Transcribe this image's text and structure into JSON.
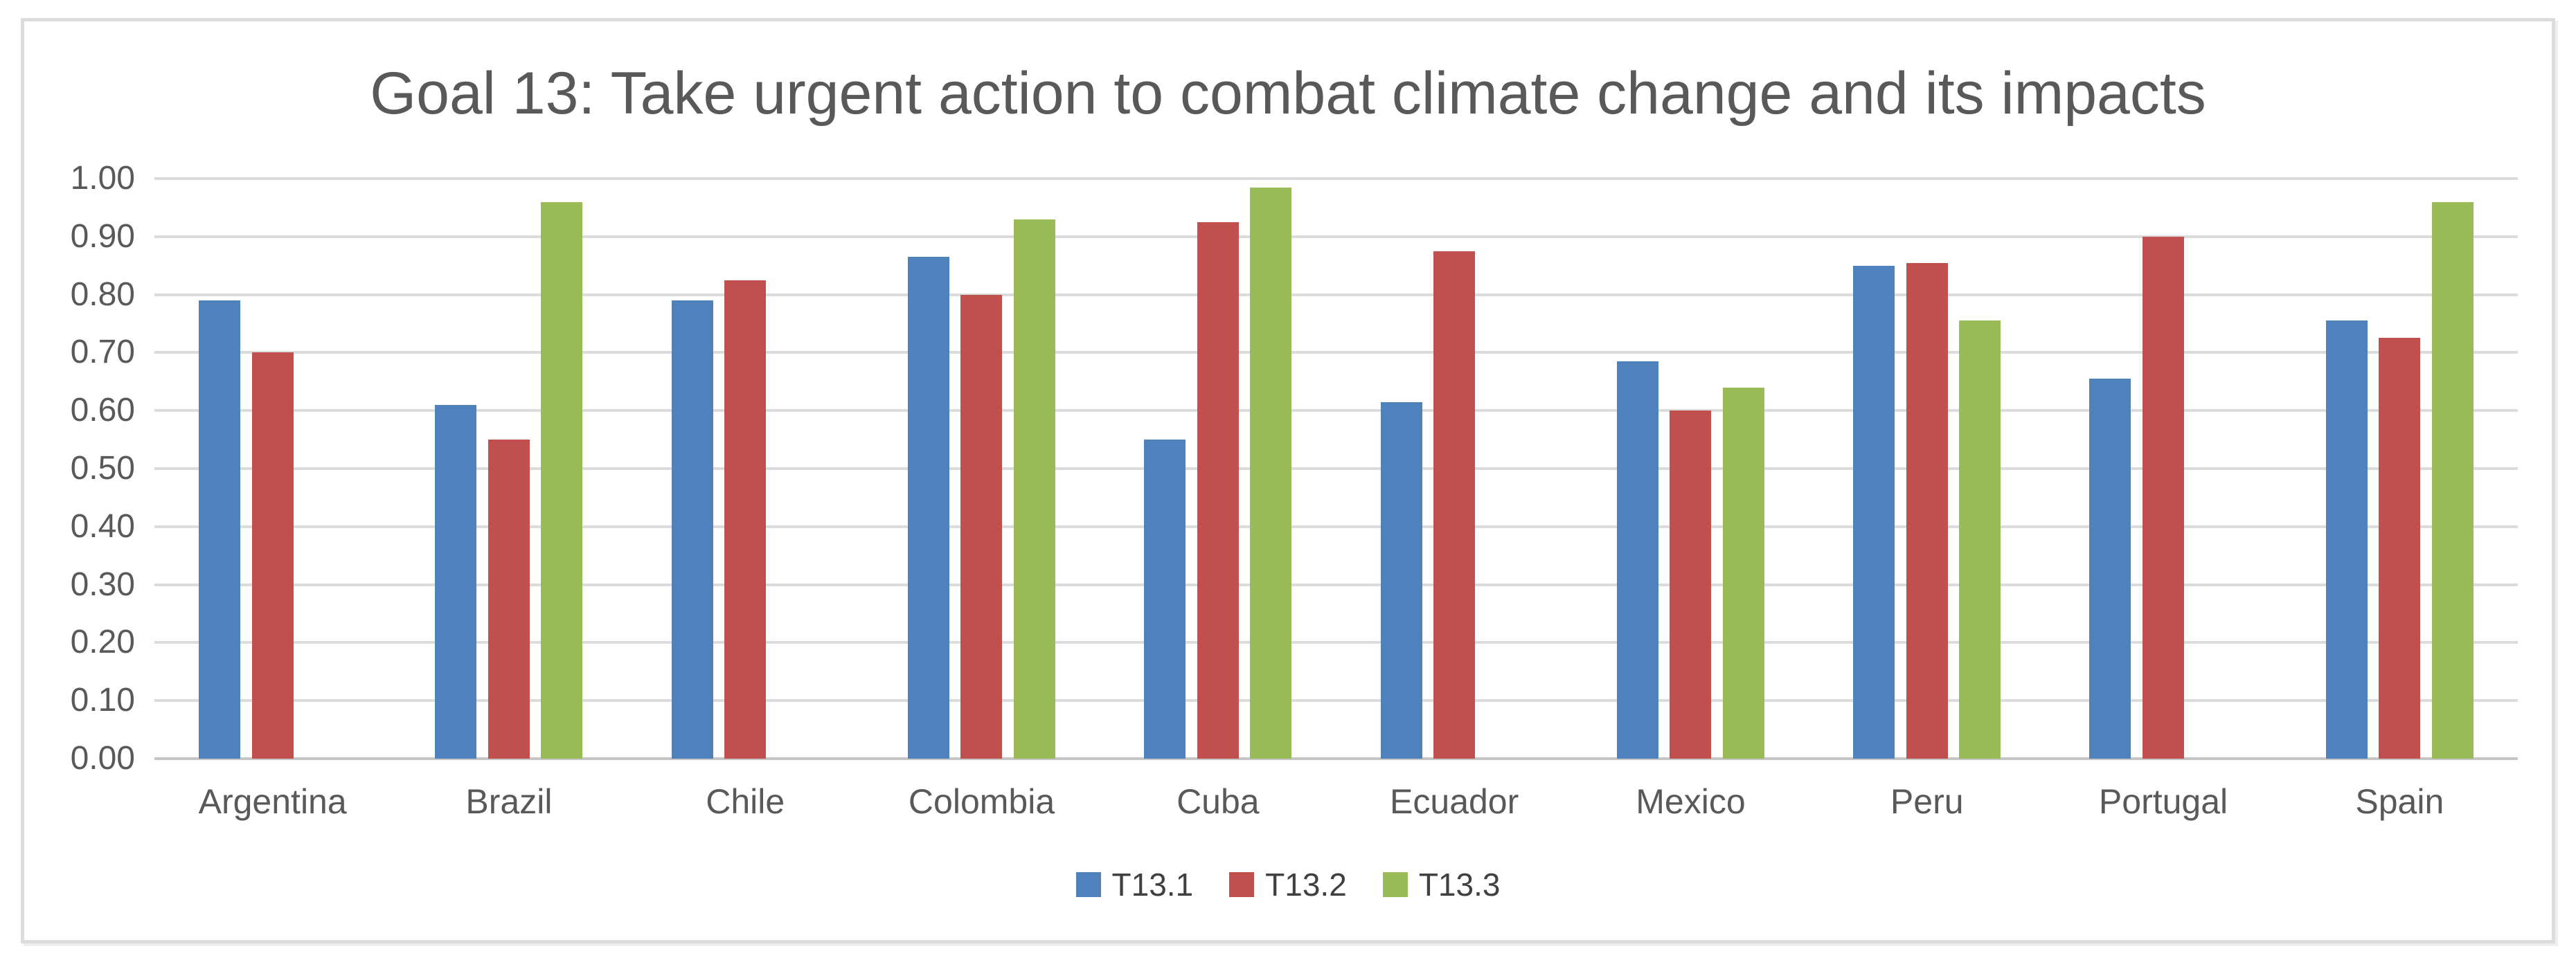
{
  "chart_data": {
    "type": "bar",
    "title": "Goal 13: Take urgent action to combat climate change and its impacts",
    "categories": [
      "Argentina",
      "Brazil",
      "Chile",
      "Colombia",
      "Cuba",
      "Ecuador",
      "Mexico",
      "Peru",
      "Portugal",
      "Spain"
    ],
    "series": [
      {
        "name": "T13.1",
        "color": "#4F81BD",
        "values": [
          0.79,
          0.61,
          0.79,
          0.865,
          0.55,
          0.615,
          0.685,
          0.85,
          0.655,
          0.755
        ]
      },
      {
        "name": "T13.2",
        "color": "#C0504D",
        "values": [
          0.7,
          0.55,
          0.825,
          0.8,
          0.925,
          0.875,
          0.6,
          0.855,
          0.9,
          0.725
        ]
      },
      {
        "name": "T13.3",
        "color": "#9BBB59",
        "values": [
          null,
          0.96,
          null,
          0.93,
          0.985,
          null,
          0.64,
          0.755,
          null,
          0.96
        ]
      }
    ],
    "ylim": [
      0,
      1
    ],
    "ytick_step": 0.1,
    "ytick_labels": [
      "1.00",
      "0.90",
      "0.80",
      "0.70",
      "0.60",
      "0.50",
      "0.40",
      "0.30",
      "0.20",
      "0.10",
      "0.00"
    ],
    "grid": true,
    "legend_position": "bottom",
    "xlabel": "",
    "ylabel": "",
    "colors": {
      "title_text": "#595959",
      "axis_text": "#595959",
      "legend_text": "#404040",
      "gridline": "#dcdcdc",
      "axis_line": "#c6c6c6",
      "frame_border": "#dcdcdc",
      "background": "#ffffff"
    }
  }
}
